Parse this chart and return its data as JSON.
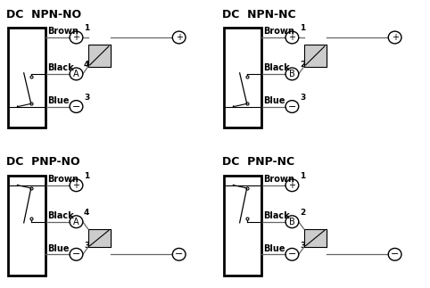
{
  "title_npn_no": "DC  NPN-NO",
  "title_npn_nc": "DC  NPN-NC",
  "title_pnp_no": "DC  PNP-NO",
  "title_pnp_nc": "DC  PNP-NC",
  "bg_color": "#ffffff",
  "wire_color": "#666666",
  "title_fontsize": 9,
  "label_fontsize": 7
}
